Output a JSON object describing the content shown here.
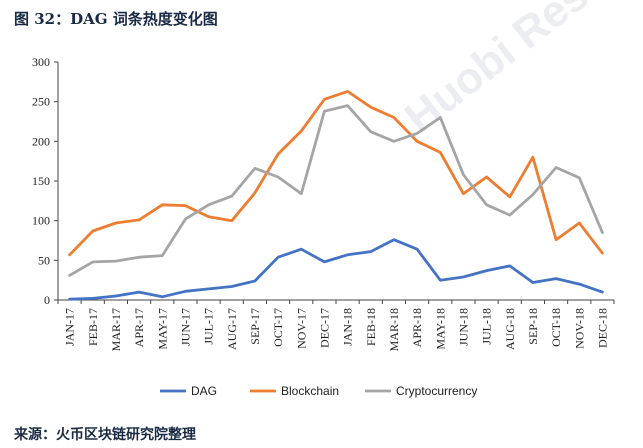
{
  "figure_title": "图 32：DAG 词条热度变化图",
  "source_note": "来源：火币区块链研究院整理",
  "watermark": "Huobi Research",
  "chart_data": {
    "type": "line",
    "categories": [
      "JAN-17",
      "FEB-17",
      "MAR-17",
      "APR-17",
      "MAY-17",
      "JUN-17",
      "JUL-17",
      "AUG-17",
      "SEP-17",
      "OCT-17",
      "NOV-17",
      "DEC-17",
      "JAN-18",
      "FEB-18",
      "MAR-18",
      "APR-18",
      "MAY-18",
      "JUN-18",
      "JUL-18",
      "AUG-18",
      "SEP-18",
      "OCT-18",
      "NOV-18",
      "DEC-18"
    ],
    "ylim": [
      0,
      300
    ],
    "yticks": [
      0,
      50,
      100,
      150,
      200,
      250,
      300
    ],
    "grid": false,
    "legend_position": "bottom",
    "series": [
      {
        "name": "DAG",
        "color": "#4472c4",
        "values": [
          1,
          2,
          5,
          10,
          4,
          11,
          14,
          17,
          24,
          54,
          64,
          48,
          57,
          61,
          76,
          64,
          25,
          29,
          37,
          43,
          22,
          27,
          20,
          10
        ]
      },
      {
        "name": "Blockchain",
        "color": "#ed7d31",
        "values": [
          57,
          87,
          97,
          101,
          120,
          119,
          105,
          100,
          135,
          184,
          213,
          253,
          263,
          243,
          230,
          200,
          186,
          134,
          155,
          130,
          180,
          76,
          97,
          59
        ]
      },
      {
        "name": "Cryptocurrency",
        "color": "#a5a5a5",
        "values": [
          31,
          48,
          49,
          54,
          56,
          102,
          120,
          131,
          166,
          155,
          134,
          238,
          245,
          212,
          200,
          210,
          230,
          158,
          120,
          107,
          133,
          167,
          154,
          85
        ]
      }
    ]
  }
}
